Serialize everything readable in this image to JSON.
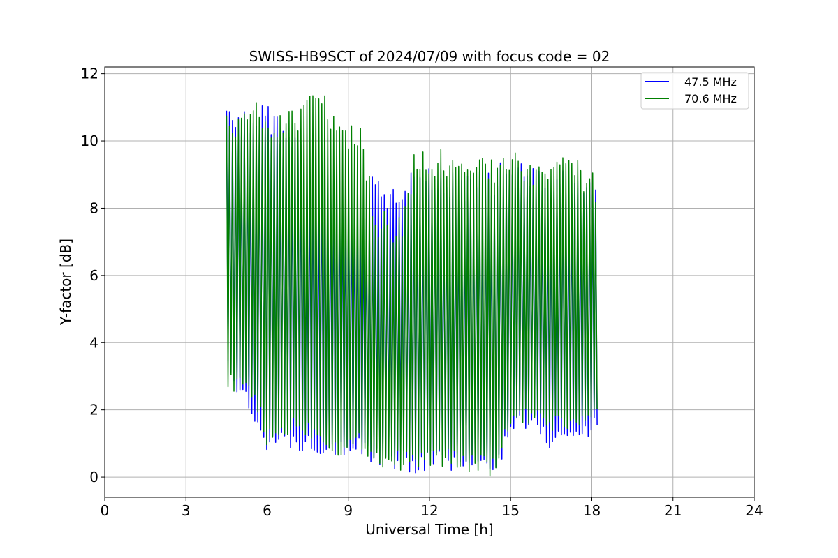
{
  "chart_data": {
    "type": "line",
    "title": "SWISS-HB9SCT of 2024/07/09 with focus code = 02",
    "xlabel": "Universal Time [h]",
    "ylabel": "Y-factor [dB]",
    "xlim": [
      0,
      24
    ],
    "ylim": [
      -0.6,
      12.2
    ],
    "xticks": [
      0,
      3,
      6,
      9,
      12,
      15,
      18,
      21,
      24
    ],
    "yticks": [
      0,
      2,
      4,
      6,
      8,
      10,
      12
    ],
    "grid": true,
    "legend_position": "top-right",
    "series": [
      {
        "name": "47.5 MHz",
        "color": "#0000ff",
        "envelope": {
          "x": [
            4.5,
            6.0,
            9.6,
            9.9,
            10.5,
            11.0,
            11.5,
            12.0,
            13.5,
            14.5,
            15.0,
            16.0,
            16.4,
            17.0,
            17.5,
            18.0,
            18.2
          ],
          "upper": [
            10.9,
            11.2,
            8.2,
            9.0,
            8.6,
            8.6,
            9.3,
            9.3,
            9.0,
            9.3,
            9.5,
            9.4,
            9.0,
            9.2,
            9.0,
            9.1,
            9.0
          ],
          "lower": [
            3.0,
            0.8,
            0.6,
            0.3,
            0.25,
            0.2,
            0.0,
            0.3,
            0.1,
            0.0,
            1.4,
            1.3,
            0.8,
            1.0,
            1.0,
            1.2,
            1.2
          ]
        }
      },
      {
        "name": "70.6 MHz",
        "color": "#008000",
        "envelope": {
          "x": [
            4.5,
            5.5,
            6.0,
            7.0,
            8.0,
            8.5,
            9.0,
            9.5,
            10.0,
            11.0,
            11.5,
            12.0,
            13.0,
            14.0,
            14.5,
            15.0,
            16.0,
            17.0,
            18.0,
            18.2
          ],
          "upper": [
            10.9,
            11.2,
            10.9,
            11.0,
            11.6,
            10.7,
            10.6,
            10.5,
            8.0,
            7.8,
            9.9,
            9.8,
            9.7,
            9.8,
            9.3,
            9.9,
            9.3,
            9.9,
            9.1,
            9.0
          ],
          "lower": [
            2.5,
            2.3,
            0.8,
            1.3,
            1.0,
            0.6,
            0.6,
            0.8,
            0.3,
            0.2,
            0.2,
            0.3,
            0.25,
            0.05,
            0.0,
            1.5,
            1.4,
            1.3,
            1.4,
            1.5
          ]
        }
      }
    ]
  }
}
